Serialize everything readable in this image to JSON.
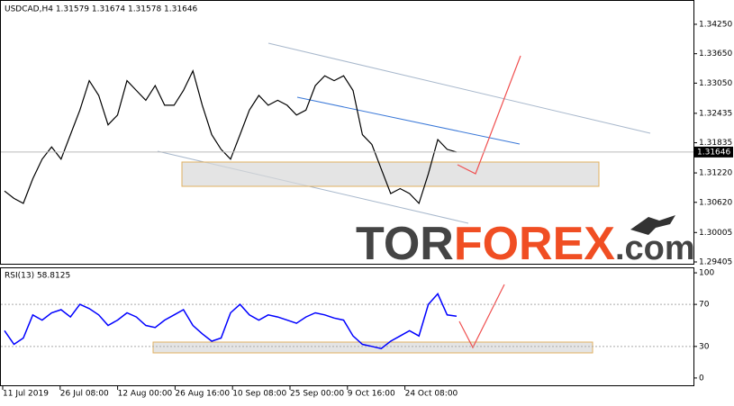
{
  "chart_data": [
    {
      "type": "line",
      "title": "USDCAD,H4 1.31579 1.31674 1.31578 1.31646",
      "series": [
        {
          "name": "USDCAD",
          "color": "#000000",
          "values": [
            1.3085,
            1.307,
            1.306,
            1.311,
            1.315,
            1.3175,
            1.315,
            1.32,
            1.325,
            1.331,
            1.328,
            1.322,
            1.324,
            1.331,
            1.329,
            1.327,
            1.33,
            1.326,
            1.326,
            1.329,
            1.333,
            1.326,
            1.32,
            1.317,
            1.315,
            1.32,
            1.325,
            1.328,
            1.326,
            1.327,
            1.326,
            1.324,
            1.325,
            1.33,
            1.332,
            1.331,
            1.332,
            1.329,
            1.32,
            1.318,
            1.313,
            1.308,
            1.309,
            1.308,
            1.306,
            1.312,
            1.319,
            1.317,
            1.31646
          ]
        }
      ],
      "last_price": 1.31646,
      "ylim": [
        1.29368,
        1.34745
      ],
      "yticks": [
        {
          "value": 1.3425,
          "label": "1.34250"
        },
        {
          "value": 1.3365,
          "label": "1.33650"
        },
        {
          "value": 1.3305,
          "label": "1.33050"
        },
        1.32435,
        {
          "value": 1.31835,
          "label": "1.31835"
        },
        {
          "value": 1.3122,
          "label": "1.31220"
        },
        {
          "value": 1.3062,
          "label": "1.30620"
        },
        1.30005,
        1.29405
      ],
      "x_labels": [
        "11 Jul 2019",
        "26 Jul 08:00",
        "12 Aug 00:00",
        "26 Aug 16:00",
        "10 Sep 08:00",
        "25 Sep 00:00",
        "9 Oct 16:00",
        "24 Oct 08:00"
      ],
      "watermark": [
        "TOR",
        "FOREX",
        ".com"
      ]
    },
    {
      "type": "line",
      "title": "RSI(13) 58.8125",
      "series": [
        {
          "name": "RSI(13)",
          "color": "#0000ff",
          "values": [
            45,
            32,
            38,
            60,
            55,
            62,
            65,
            58,
            70,
            66,
            60,
            50,
            55,
            62,
            58,
            50,
            48,
            55,
            60,
            65,
            50,
            42,
            35,
            38,
            62,
            70,
            60,
            55,
            60,
            58,
            55,
            52,
            58,
            62,
            60,
            57,
            55,
            40,
            32,
            30,
            28,
            35,
            40,
            45,
            40,
            70,
            80,
            60,
            58.8125
          ]
        }
      ],
      "ylim": [
        -7.8,
        105.2
      ],
      "yticks": [
        100,
        70,
        30,
        0
      ]
    }
  ]
}
